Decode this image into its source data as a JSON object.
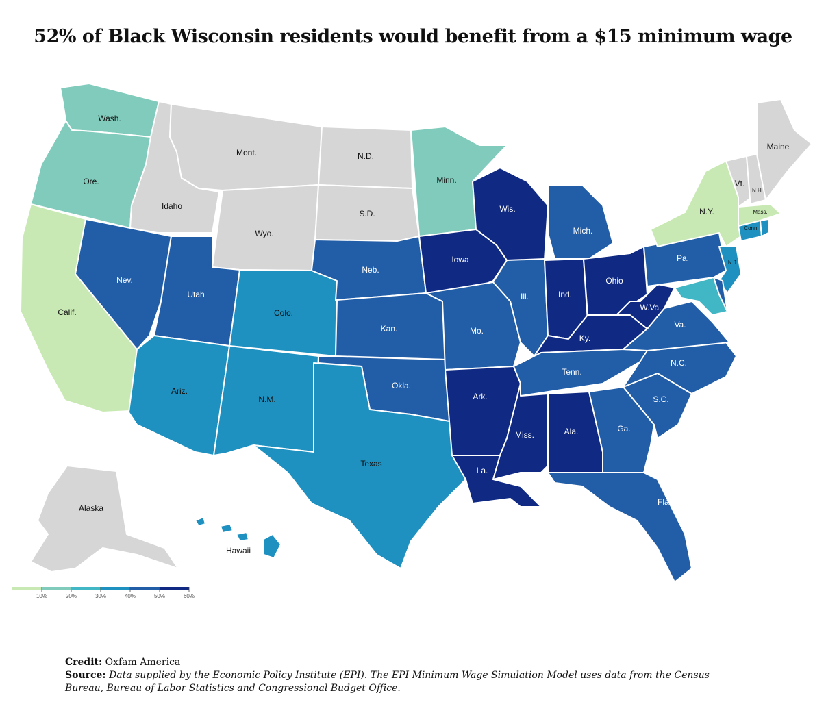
{
  "title": "52% of Black Wisconsin residents would benefit from a $15 minimum wage",
  "colors": {
    "band_0_10": "#c8e9b3",
    "band_10_20": "#80cbbb",
    "band_20_30": "#41b6c4",
    "band_30_40": "#1e91c0",
    "band_40_50": "#225ea8",
    "band_50_60": "#102a84",
    "no_data": "#d6d6d6"
  },
  "legend": {
    "ticks": [
      "10%",
      "20%",
      "30%",
      "40%",
      "50%",
      "60%"
    ]
  },
  "states": [
    {
      "id": "wash",
      "label": "Wash.",
      "band": "band_10_20"
    },
    {
      "id": "ore",
      "label": "Ore.",
      "band": "band_10_20"
    },
    {
      "id": "calif",
      "label": "Calif.",
      "band": "band_0_10"
    },
    {
      "id": "idaho",
      "label": "Idaho",
      "band": "no_data"
    },
    {
      "id": "nev",
      "label": "Nev.",
      "band": "band_40_50"
    },
    {
      "id": "mont",
      "label": "Mont.",
      "band": "no_data"
    },
    {
      "id": "wyo",
      "label": "Wyo.",
      "band": "no_data"
    },
    {
      "id": "utah",
      "label": "Utah",
      "band": "band_40_50"
    },
    {
      "id": "ariz",
      "label": "Ariz.",
      "band": "band_30_40"
    },
    {
      "id": "colo",
      "label": "Colo.",
      "band": "band_30_40"
    },
    {
      "id": "nm",
      "label": "N.M.",
      "band": "band_30_40"
    },
    {
      "id": "nd",
      "label": "N.D.",
      "band": "no_data"
    },
    {
      "id": "sd",
      "label": "S.D.",
      "band": "no_data"
    },
    {
      "id": "neb",
      "label": "Neb.",
      "band": "band_40_50"
    },
    {
      "id": "kan",
      "label": "Kan.",
      "band": "band_40_50"
    },
    {
      "id": "okla",
      "label": "Okla.",
      "band": "band_40_50"
    },
    {
      "id": "texas",
      "label": "Texas",
      "band": "band_30_40"
    },
    {
      "id": "minn",
      "label": "Minn.",
      "band": "band_10_20"
    },
    {
      "id": "iowa",
      "label": "Iowa",
      "band": "band_50_60"
    },
    {
      "id": "mo",
      "label": "Mo.",
      "band": "band_40_50"
    },
    {
      "id": "ark",
      "label": "Ark.",
      "band": "band_50_60"
    },
    {
      "id": "la",
      "label": "La.",
      "band": "band_50_60"
    },
    {
      "id": "wis",
      "label": "Wis.",
      "band": "band_50_60"
    },
    {
      "id": "ill",
      "label": "Ill.",
      "band": "band_40_50"
    },
    {
      "id": "mich",
      "label": "Mich.",
      "band": "band_40_50"
    },
    {
      "id": "ind",
      "label": "Ind.",
      "band": "band_50_60"
    },
    {
      "id": "ohio",
      "label": "Ohio",
      "band": "band_50_60"
    },
    {
      "id": "ky",
      "label": "Ky.",
      "band": "band_50_60"
    },
    {
      "id": "tenn",
      "label": "Tenn.",
      "band": "band_40_50"
    },
    {
      "id": "miss",
      "label": "Miss.",
      "band": "band_50_60"
    },
    {
      "id": "ala",
      "label": "Ala.",
      "band": "band_50_60"
    },
    {
      "id": "ga",
      "label": "Ga.",
      "band": "band_40_50"
    },
    {
      "id": "fla",
      "label": "Fla.",
      "band": "band_40_50"
    },
    {
      "id": "sc",
      "label": "S.C.",
      "band": "band_40_50"
    },
    {
      "id": "nc",
      "label": "N.C.",
      "band": "band_40_50"
    },
    {
      "id": "va",
      "label": "Va.",
      "band": "band_40_50"
    },
    {
      "id": "wva",
      "label": "W.Va.",
      "band": "band_50_60"
    },
    {
      "id": "pa",
      "label": "Pa.",
      "band": "band_40_50"
    },
    {
      "id": "ny",
      "label": "N.Y.",
      "band": "band_0_10"
    },
    {
      "id": "nj",
      "label": "N.J.",
      "band": "band_30_40"
    },
    {
      "id": "md",
      "label": "",
      "band": "band_20_30"
    },
    {
      "id": "de",
      "label": "",
      "band": "band_40_50"
    },
    {
      "id": "conn",
      "label": "Conn.",
      "band": "band_30_40"
    },
    {
      "id": "ri",
      "label": "",
      "band": "band_30_40"
    },
    {
      "id": "mass",
      "label": "Mass.",
      "band": "band_0_10"
    },
    {
      "id": "vt",
      "label": "Vt.",
      "band": "no_data"
    },
    {
      "id": "nh",
      "label": "N.H.",
      "band": "no_data"
    },
    {
      "id": "maine",
      "label": "Maine",
      "band": "no_data"
    },
    {
      "id": "alaska",
      "label": "Alaska",
      "band": "no_data"
    },
    {
      "id": "hawaii",
      "label": "Hawaii",
      "band": "band_30_40"
    }
  ],
  "credit": {
    "label": "Credit:",
    "text": "Oxfam America"
  },
  "source": {
    "label": "Source:",
    "text": "Data supplied by the Economic Policy Institute (EPI). The EPI Minimum Wage Simulation Model uses data from the Census Bureau, Bureau of Labor Statistics and Congressional Budget Office."
  }
}
